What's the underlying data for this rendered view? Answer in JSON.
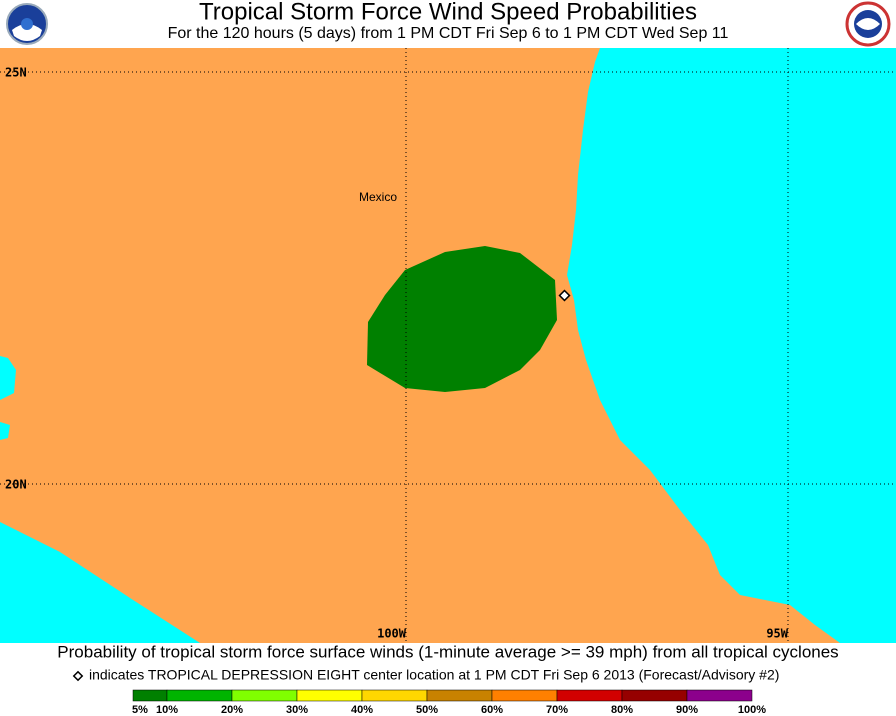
{
  "header": {
    "title": "Tropical Storm Force Wind Speed Probabilities",
    "subtitle": "For the 120 hours (5 days) from 1 PM CDT Fri Sep 6 to 1 PM CDT Wed Sep 11"
  },
  "map": {
    "latitude_labels": [
      "25N",
      "20N"
    ],
    "longitude_labels": [
      "100W",
      "95W"
    ],
    "place_label": "Mexico",
    "land_color": "#ffa54f",
    "water_color": "#00ffff"
  },
  "footer": {
    "caption": "Probability of tropical storm force surface winds (1-minute average >= 39 mph) from all tropical cyclones",
    "marker_note": "indicates TROPICAL DEPRESSION EIGHT center location at 1 PM CDT Fri Sep 6 2013 (Forecast/Advisory #2)"
  },
  "legend": {
    "labels": [
      "5%",
      "10%",
      "20%",
      "30%",
      "40%",
      "50%",
      "60%",
      "70%",
      "80%",
      "90%",
      "100%"
    ],
    "colors": [
      "#008000",
      "#00b400",
      "#80ff00",
      "#ffff00",
      "#ffd700",
      "#c88200",
      "#ff8000",
      "#d20000",
      "#960000",
      "#8c008c"
    ]
  }
}
